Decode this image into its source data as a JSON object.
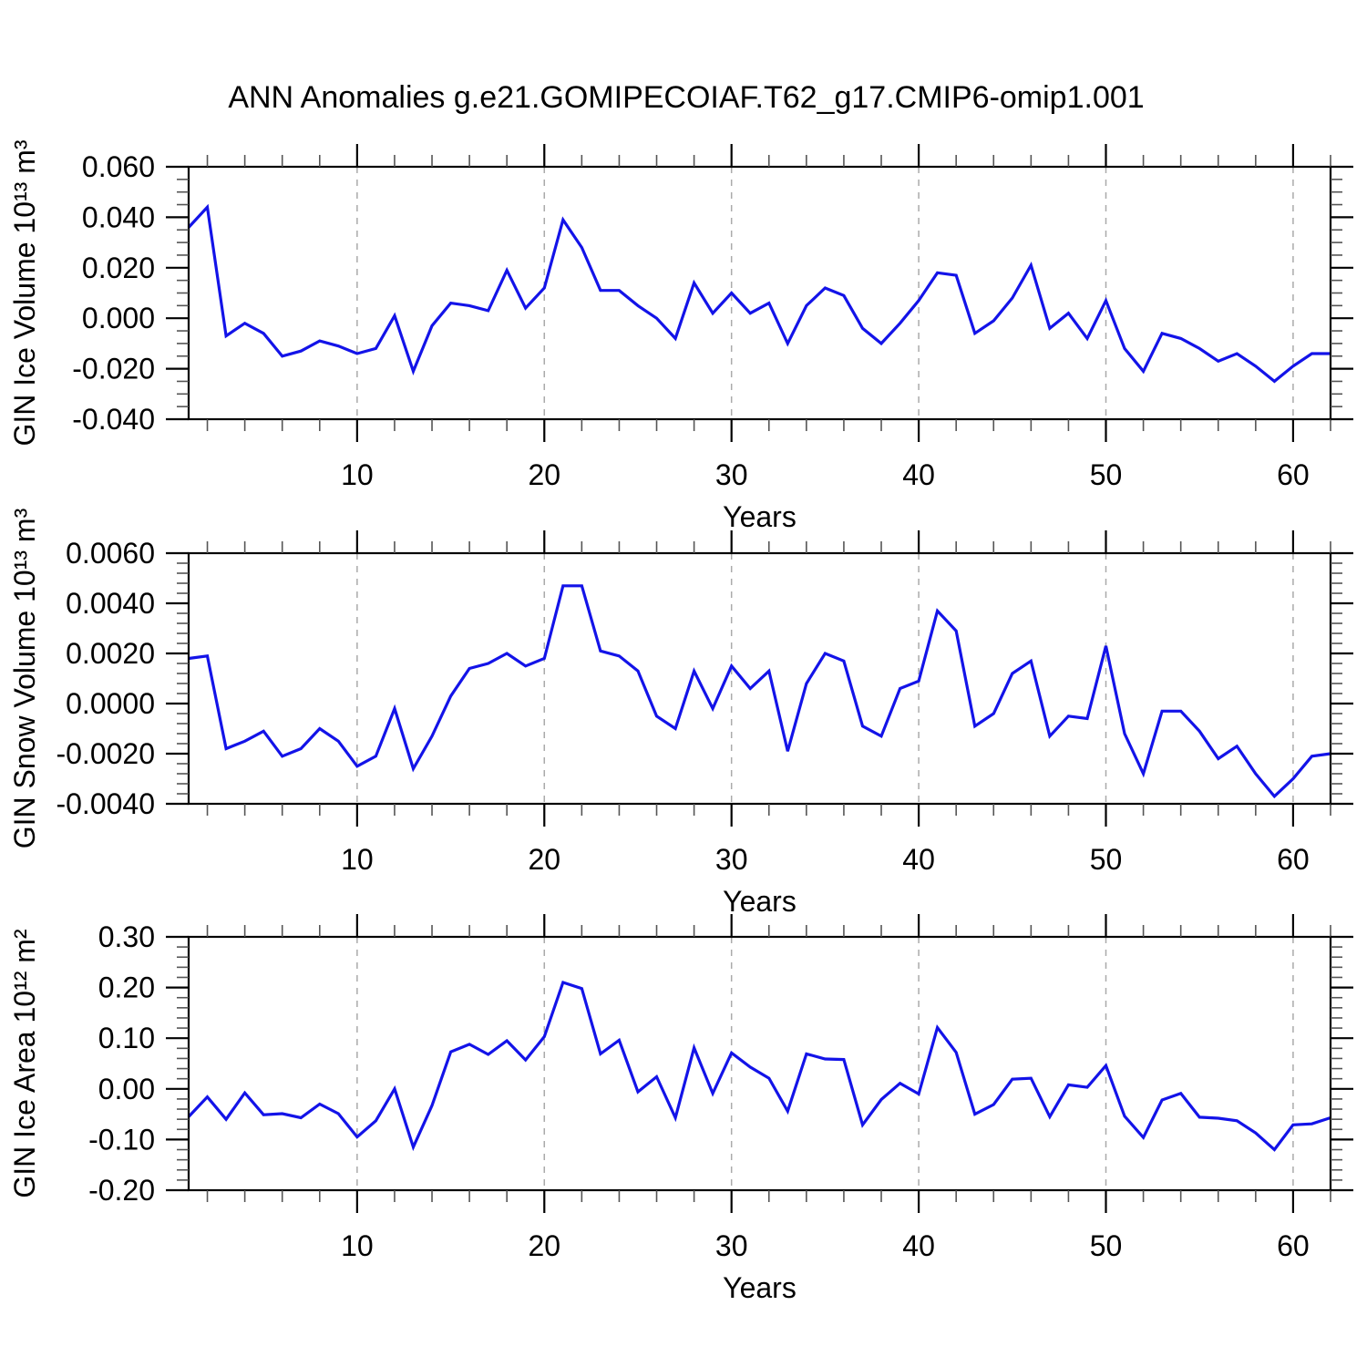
{
  "chart_data": {
    "type": "line",
    "title": "ANN Anomalies g.e21.GOMIPECOIAF.T62_g17.CMIP6-omip1.001",
    "legend": "none",
    "grid": "dashed vertical lines at decade years",
    "colors": {
      "line": "#1313e8",
      "grid": "#aaaaaa",
      "frame": "#000000",
      "minor_tick": "#555555",
      "background": "#ffffff"
    },
    "x": {
      "axis_label": "Years",
      "range": [
        1,
        62
      ],
      "tick_values": [
        10,
        20,
        30,
        40,
        50,
        60
      ],
      "tick_labels": [
        "10",
        "20",
        "30",
        "40",
        "50",
        "60"
      ],
      "minor_start": 2,
      "minor_interval": 2,
      "grid_years": [
        10,
        20,
        30,
        40,
        50,
        60
      ]
    },
    "panels": [
      {
        "id": "gin-ice-volume",
        "y_axis_label": "GIN Ice Volume 10¹³ m³",
        "y_range": [
          -0.04,
          0.06
        ],
        "ytick_values": [
          0.06,
          0.04,
          0.02,
          0.0,
          -0.02,
          -0.04
        ],
        "ytick_labels": [
          "0.060",
          "0.040",
          "0.020",
          "0.000",
          "-0.020",
          "-0.040"
        ],
        "y_minor_step": 0.005,
        "values": [
          0.036,
          0.044,
          -0.007,
          -0.002,
          -0.006,
          -0.015,
          -0.013,
          -0.009,
          -0.011,
          -0.014,
          -0.012,
          0.001,
          -0.021,
          -0.003,
          0.006,
          0.005,
          0.003,
          0.019,
          0.004,
          0.012,
          0.039,
          0.028,
          0.011,
          0.011,
          0.005,
          0.0,
          -0.008,
          0.014,
          0.002,
          0.01,
          0.002,
          0.006,
          -0.01,
          0.005,
          0.012,
          0.009,
          -0.004,
          -0.01,
          -0.002,
          0.007,
          0.018,
          0.017,
          -0.006,
          -0.001,
          0.008,
          0.021,
          -0.004,
          0.002,
          -0.008,
          0.007,
          -0.012,
          -0.021,
          -0.006,
          -0.008,
          -0.012,
          -0.017,
          -0.014,
          -0.019,
          -0.025,
          -0.019,
          -0.014,
          -0.014
        ]
      },
      {
        "id": "gin-snow-volume",
        "y_axis_label": "GIN Snow Volume 10¹³ m³",
        "y_range": [
          -0.004,
          0.006
        ],
        "ytick_values": [
          0.006,
          0.004,
          0.002,
          0.0,
          -0.002,
          -0.004
        ],
        "ytick_labels": [
          "0.0060",
          "0.0040",
          "0.0020",
          "0.0000",
          "-0.0020",
          "-0.0040"
        ],
        "y_minor_step": 0.0004,
        "values": [
          0.0018,
          0.0019,
          -0.0018,
          -0.0015,
          -0.0011,
          -0.0021,
          -0.0018,
          -0.001,
          -0.0015,
          -0.0025,
          -0.0021,
          -0.0002,
          -0.0026,
          -0.0013,
          0.0003,
          0.0014,
          0.0016,
          0.002,
          0.0015,
          0.0018,
          0.0047,
          0.0047,
          0.0021,
          0.0019,
          0.0013,
          -0.0005,
          -0.001,
          0.0013,
          -0.0002,
          0.0015,
          0.0006,
          0.0013,
          -0.0019,
          0.0008,
          0.002,
          0.0017,
          -0.0009,
          -0.0013,
          0.0006,
          0.0009,
          0.0037,
          0.0029,
          -0.0009,
          -0.0004,
          0.0012,
          0.0017,
          -0.0013,
          -0.0005,
          -0.0006,
          0.0023,
          -0.0012,
          -0.0028,
          -0.0003,
          -0.0003,
          -0.0011,
          -0.0022,
          -0.0017,
          -0.0028,
          -0.0037,
          -0.003,
          -0.0021,
          -0.002
        ]
      },
      {
        "id": "gin-ice-area",
        "y_axis_label": "GIN Ice Area 10¹² m²",
        "y_range": [
          -0.2,
          0.3
        ],
        "ytick_values": [
          0.3,
          0.2,
          0.1,
          0.0,
          -0.1,
          -0.2
        ],
        "ytick_labels": [
          "0.30",
          "0.20",
          "0.10",
          "0.00",
          "-0.10",
          "-0.20"
        ],
        "y_minor_step": 0.02,
        "values": [
          -0.055,
          -0.016,
          -0.06,
          -0.008,
          -0.051,
          -0.049,
          -0.057,
          -0.03,
          -0.049,
          -0.095,
          -0.063,
          0.0,
          -0.115,
          -0.033,
          0.073,
          0.088,
          0.068,
          0.095,
          0.057,
          0.103,
          0.21,
          0.198,
          0.069,
          0.096,
          -0.006,
          0.024,
          -0.057,
          0.081,
          -0.009,
          0.071,
          0.043,
          0.021,
          -0.044,
          0.069,
          0.059,
          0.058,
          -0.071,
          -0.021,
          0.011,
          -0.01,
          0.121,
          0.072,
          -0.05,
          -0.031,
          0.019,
          0.021,
          -0.055,
          0.008,
          0.003,
          0.046,
          -0.054,
          -0.096,
          -0.022,
          -0.009,
          -0.056,
          -0.058,
          -0.063,
          -0.087,
          -0.12,
          -0.071,
          -0.069,
          -0.057
        ]
      }
    ]
  }
}
